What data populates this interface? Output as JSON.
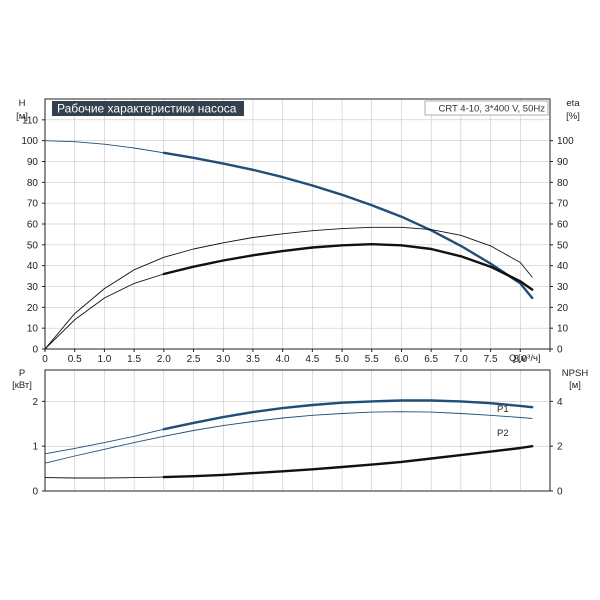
{
  "chart_data": [
    {
      "type": "line",
      "title": "Рабочие характеристики насоса",
      "subtitle": "CRT 4-10, 3*400 V, 50Hz",
      "xlabel": "Q",
      "xunit": "[м³/ч]",
      "ylabel": "H",
      "yunit": "[м]",
      "y2label": "eta",
      "y2unit": "[%]",
      "xlim": [
        0,
        8.5
      ],
      "ylim": [
        0,
        120
      ],
      "y2lim": [
        0,
        120
      ],
      "x_ticks": [
        "0",
        "0.5",
        "1.0",
        "1.5",
        "2.0",
        "2.5",
        "3.0",
        "3.5",
        "4.0",
        "4.5",
        "5.0",
        "5.5",
        "6.0",
        "6.5",
        "7.0",
        "7.5",
        "8.0"
      ],
      "y_ticks": [
        "0",
        "10",
        "20",
        "30",
        "40",
        "50",
        "60",
        "70",
        "80",
        "90",
        "100",
        "110"
      ],
      "y2_ticks": [
        "0",
        "10",
        "20",
        "30",
        "40",
        "50",
        "60",
        "70",
        "80",
        "90",
        "100"
      ],
      "grid": true,
      "series": [
        {
          "axis": "left",
          "color": "#1f4e79",
          "segments": [
            {
              "style": "thin",
              "points": [
                [
                  0,
                  100
                ],
                [
                  0.5,
                  99.5
                ],
                [
                  1.0,
                  98.3
                ],
                [
                  1.5,
                  96.5
                ],
                [
                  2.0,
                  94.2
                ]
              ]
            },
            {
              "style": "thick",
              "points": [
                [
                  2.0,
                  94.2
                ],
                [
                  2.5,
                  91.8
                ],
                [
                  3.0,
                  89.0
                ],
                [
                  3.5,
                  86.0
                ],
                [
                  4.0,
                  82.5
                ],
                [
                  4.5,
                  78.5
                ],
                [
                  5.0,
                  74.0
                ],
                [
                  5.5,
                  69.0
                ],
                [
                  6.0,
                  63.5
                ],
                [
                  6.5,
                  57.0
                ],
                [
                  7.0,
                  49.5
                ],
                [
                  7.5,
                  41.0
                ],
                [
                  8.0,
                  31.5
                ],
                [
                  8.2,
                  24.5
                ]
              ]
            }
          ]
        },
        {
          "axis": "right",
          "color": "#111111",
          "segments": [
            {
              "style": "thin",
              "points": [
                [
                  0,
                  0
                ],
                [
                  0.5,
                  17.0
                ],
                [
                  1.0,
                  29.0
                ],
                [
                  1.5,
                  38.0
                ],
                [
                  2.0,
                  44.0
                ],
                [
                  2.5,
                  48.0
                ],
                [
                  3.0,
                  51.0
                ],
                [
                  3.5,
                  53.5
                ],
                [
                  4.0,
                  55.3
                ],
                [
                  4.5,
                  56.8
                ],
                [
                  5.0,
                  57.8
                ],
                [
                  5.5,
                  58.4
                ],
                [
                  6.0,
                  58.4
                ],
                [
                  6.5,
                  57.3
                ],
                [
                  7.0,
                  54.6
                ],
                [
                  7.5,
                  49.5
                ],
                [
                  8.0,
                  41.5
                ],
                [
                  8.2,
                  34.5
                ]
              ]
            }
          ]
        },
        {
          "axis": "right",
          "color": "#111111",
          "segments": [
            {
              "style": "thin",
              "points": [
                [
                  0,
                  0
                ],
                [
                  0.5,
                  14.0
                ],
                [
                  1.0,
                  24.5
                ],
                [
                  1.5,
                  31.5
                ],
                [
                  2.0,
                  36.0
                ]
              ]
            },
            {
              "style": "thick",
              "points": [
                [
                  2.0,
                  36.0
                ],
                [
                  2.5,
                  39.5
                ],
                [
                  3.0,
                  42.5
                ],
                [
                  3.5,
                  45.0
                ],
                [
                  4.0,
                  47.0
                ],
                [
                  4.5,
                  48.7
                ],
                [
                  5.0,
                  49.8
                ],
                [
                  5.5,
                  50.3
                ],
                [
                  6.0,
                  49.8
                ],
                [
                  6.5,
                  48.0
                ],
                [
                  7.0,
                  44.5
                ],
                [
                  7.5,
                  39.5
                ],
                [
                  8.0,
                  32.5
                ],
                [
                  8.2,
                  28.5
                ]
              ]
            }
          ]
        }
      ]
    },
    {
      "type": "line",
      "ylabel": "P",
      "yunit": "[кВт]",
      "y2label": "NPSH",
      "y2unit": "[м]",
      "xlim": [
        0,
        8.5
      ],
      "ylim": [
        0,
        2.7
      ],
      "y2lim": [
        0,
        5.4
      ],
      "y_ticks": [
        "0",
        "1",
        "2"
      ],
      "y2_ticks": [
        "0",
        "2",
        "4"
      ],
      "grid": true,
      "series": [
        {
          "name": "P1",
          "axis": "left",
          "color": "#1f4e79",
          "segments": [
            {
              "style": "thin",
              "points": [
                [
                  0,
                  0.83
                ],
                [
                  0.5,
                  0.95
                ],
                [
                  1.0,
                  1.08
                ],
                [
                  1.5,
                  1.22
                ],
                [
                  2.0,
                  1.38
                ]
              ]
            },
            {
              "style": "thick",
              "points": [
                [
                  2.0,
                  1.38
                ],
                [
                  2.5,
                  1.52
                ],
                [
                  3.0,
                  1.65
                ],
                [
                  3.5,
                  1.76
                ],
                [
                  4.0,
                  1.85
                ],
                [
                  4.5,
                  1.92
                ],
                [
                  5.0,
                  1.97
                ],
                [
                  5.5,
                  2.0
                ],
                [
                  6.0,
                  2.02
                ],
                [
                  6.5,
                  2.02
                ],
                [
                  7.0,
                  2.0
                ],
                [
                  7.5,
                  1.96
                ],
                [
                  8.0,
                  1.9
                ],
                [
                  8.2,
                  1.87
                ]
              ]
            }
          ]
        },
        {
          "name": "P2",
          "axis": "left",
          "color": "#1f4e79",
          "segments": [
            {
              "style": "thin",
              "points": [
                [
                  0,
                  0.62
                ],
                [
                  0.5,
                  0.78
                ],
                [
                  1.0,
                  0.93
                ],
                [
                  1.5,
                  1.08
                ],
                [
                  2.0,
                  1.22
                ],
                [
                  2.5,
                  1.35
                ],
                [
                  3.0,
                  1.46
                ],
                [
                  3.5,
                  1.55
                ],
                [
                  4.0,
                  1.63
                ],
                [
                  4.5,
                  1.69
                ],
                [
                  5.0,
                  1.73
                ],
                [
                  5.5,
                  1.76
                ],
                [
                  6.0,
                  1.77
                ],
                [
                  6.5,
                  1.76
                ],
                [
                  7.0,
                  1.73
                ],
                [
                  7.5,
                  1.69
                ],
                [
                  8.0,
                  1.64
                ],
                [
                  8.2,
                  1.62
                ]
              ]
            }
          ]
        },
        {
          "axis": "right",
          "color": "#111111",
          "segments": [
            {
              "style": "thin",
              "points": [
                [
                  0,
                  0.6
                ],
                [
                  0.5,
                  0.58
                ],
                [
                  1.0,
                  0.58
                ],
                [
                  1.5,
                  0.6
                ],
                [
                  2.0,
                  0.62
                ]
              ]
            },
            {
              "style": "thick",
              "points": [
                [
                  2.0,
                  0.62
                ],
                [
                  2.5,
                  0.66
                ],
                [
                  3.0,
                  0.72
                ],
                [
                  3.5,
                  0.8
                ],
                [
                  4.0,
                  0.88
                ],
                [
                  4.5,
                  0.97
                ],
                [
                  5.0,
                  1.07
                ],
                [
                  5.5,
                  1.18
                ],
                [
                  6.0,
                  1.3
                ],
                [
                  6.5,
                  1.45
                ],
                [
                  7.0,
                  1.6
                ],
                [
                  7.5,
                  1.76
                ],
                [
                  8.0,
                  1.92
                ],
                [
                  8.2,
                  2.0
                ]
              ]
            }
          ]
        }
      ]
    }
  ]
}
